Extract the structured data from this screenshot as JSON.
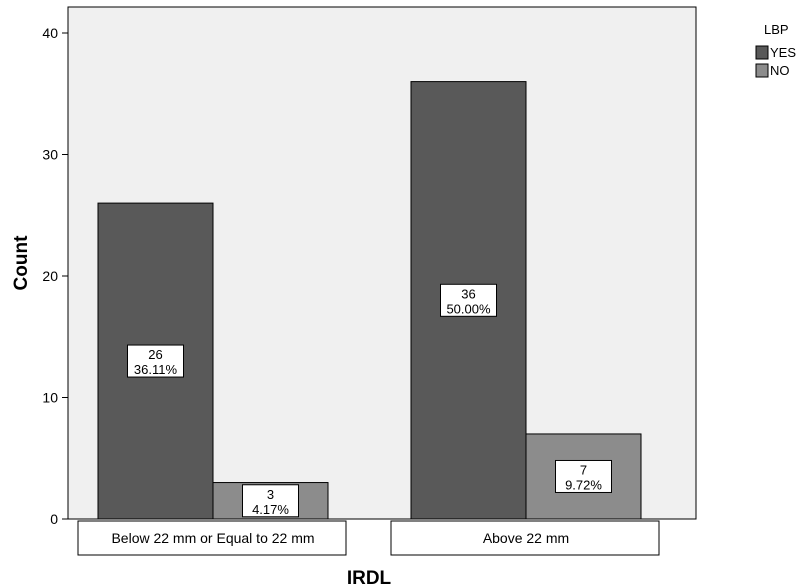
{
  "chart_data": {
    "type": "bar",
    "xlabel": "IRDL",
    "ylabel": "Count",
    "ylim": [
      0,
      43
    ],
    "yticks": [
      0,
      10,
      20,
      30,
      40
    ],
    "categories": [
      "Below 22 mm or Equal to 22 mm",
      "Above 22 mm"
    ],
    "legend_title": "LBP",
    "legend_position": "top-right",
    "grid": false,
    "series": [
      {
        "name": "YES",
        "color": "#595959",
        "values": [
          26,
          36
        ],
        "percent_labels": [
          "36.11%",
          "50.00%"
        ]
      },
      {
        "name": "NO",
        "color": "#8c8c8c",
        "values": [
          3,
          7
        ],
        "percent_labels": [
          "4.17%",
          "9.72%"
        ]
      }
    ],
    "plot_background": "#f0f0f0"
  }
}
